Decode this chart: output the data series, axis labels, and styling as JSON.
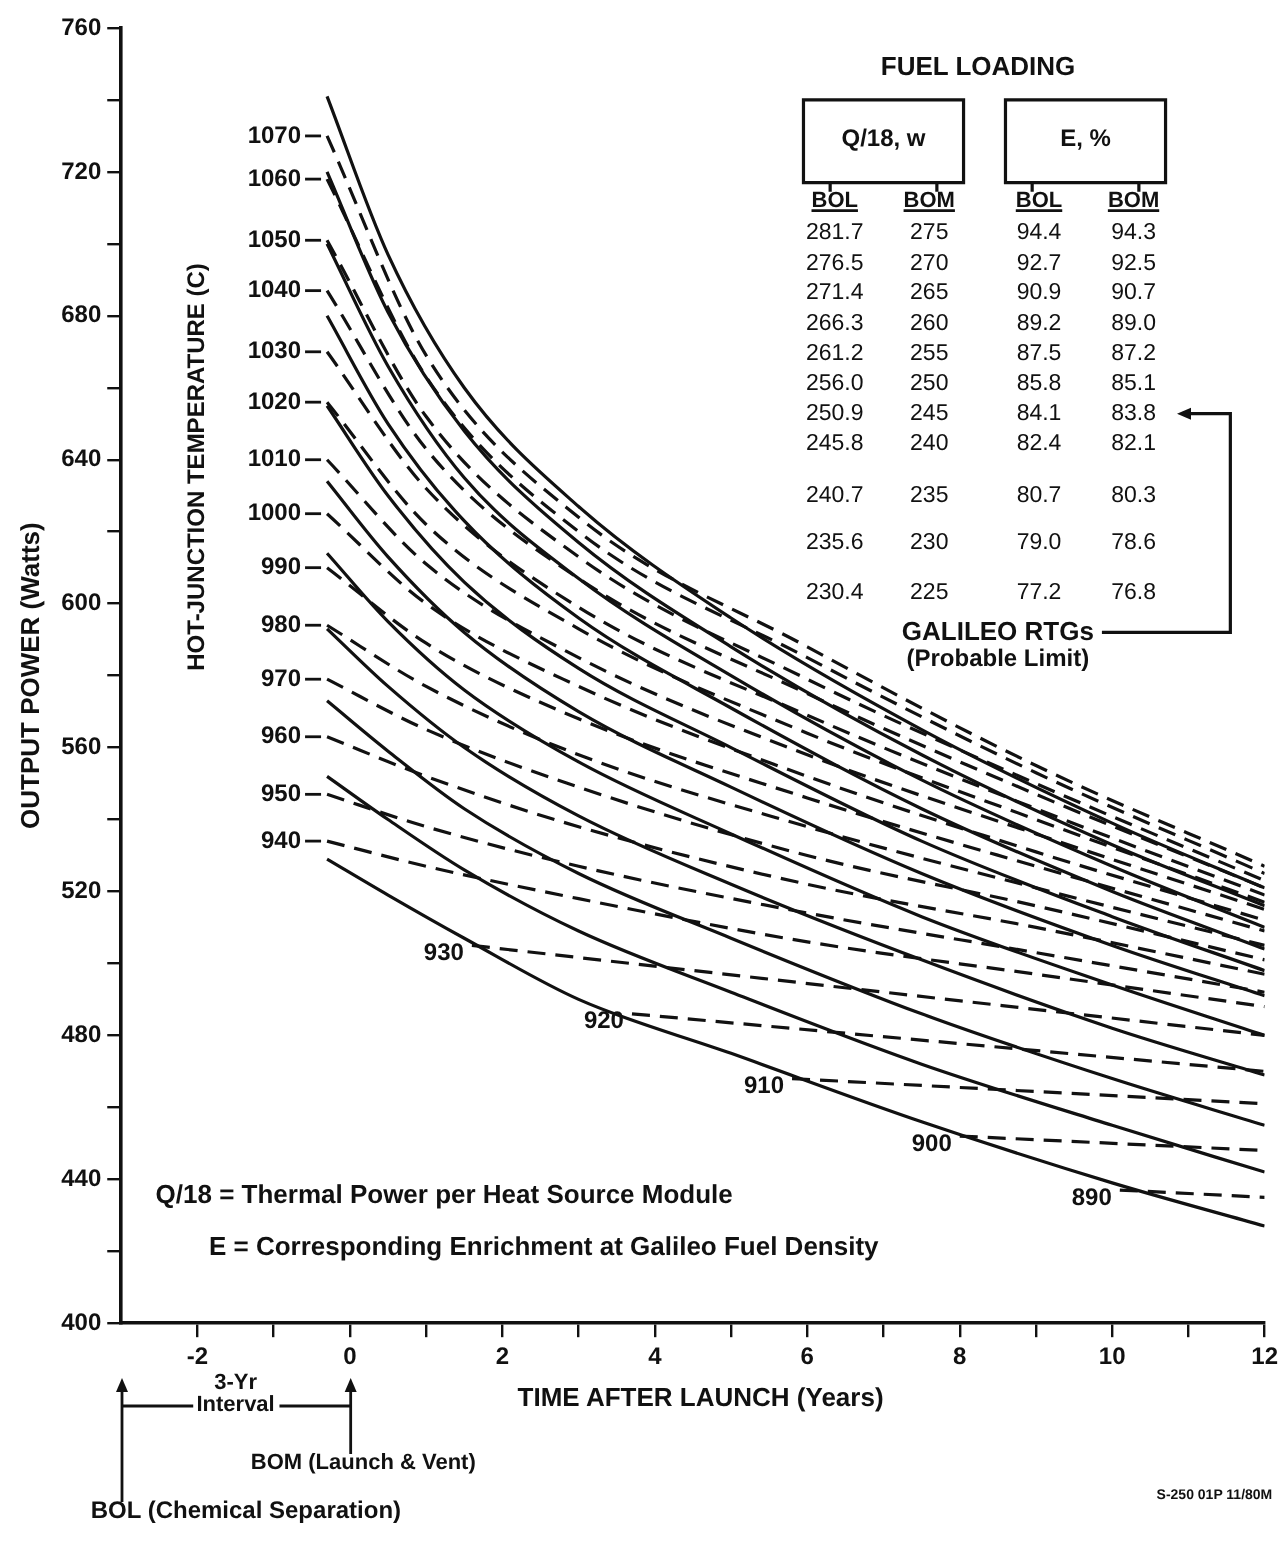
{
  "chart_data": {
    "type": "line",
    "xlabel": "TIME AFTER LAUNCH (Years)",
    "ylabel": "OUTPUT POWER (Watts)",
    "xlim": [
      -3,
      12
    ],
    "xticks": [
      -2,
      {
        "value": -1,
        "label": null
      },
      0,
      {
        "value": 1,
        "label": null
      },
      2,
      {
        "value": 3,
        "label": null
      },
      4,
      {
        "value": 5,
        "label": null
      },
      6,
      {
        "value": 7,
        "label": null
      },
      8,
      {
        "value": 9,
        "label": null
      },
      10,
      {
        "value": 11,
        "label": null
      },
      12
    ],
    "ylim": [
      400,
      760
    ],
    "yticks": [
      400,
      {
        "value": 420,
        "label": null
      },
      440,
      {
        "value": 460,
        "label": null
      },
      480,
      {
        "value": 500,
        "label": null
      },
      520,
      {
        "value": 540,
        "label": null
      },
      560,
      {
        "value": 580,
        "label": null
      },
      600,
      {
        "value": 620,
        "label": null
      },
      640,
      {
        "value": 660,
        "label": null
      },
      680,
      {
        "value": 700,
        "label": null
      },
      720,
      {
        "value": 740,
        "label": null
      },
      760
    ],
    "grid": false,
    "legend": false,
    "marker": "none",
    "series": [
      {
        "color": "#111111",
        "line_style": "solid",
        "x": [
          -0.3,
          0.5,
          1.5,
          3,
          5,
          7.5,
          10,
          12
        ],
        "values": [
          741,
          697,
          660,
          627,
          596,
          565,
          539,
          521
        ]
      },
      {
        "color": "#111111",
        "line_style": "solid",
        "x": [
          -0.3,
          0.5,
          1.5,
          3,
          5,
          7.5,
          10,
          12
        ],
        "values": [
          720,
          681,
          648,
          617,
          588,
          558,
          533,
          516
        ]
      },
      {
        "color": "#111111",
        "line_style": "solid",
        "x": [
          -0.3,
          0.5,
          1.5,
          3,
          5,
          7.5,
          10,
          12
        ],
        "values": [
          700,
          666,
          635,
          607,
          580,
          551,
          527,
          510
        ]
      },
      {
        "color": "#111111",
        "line_style": "solid",
        "x": [
          -0.3,
          0.5,
          1.5,
          3,
          5,
          7.5,
          10,
          12
        ],
        "values": [
          680,
          650,
          623,
          596,
          571,
          543,
          520,
          504
        ]
      },
      {
        "color": "#111111",
        "line_style": "solid",
        "x": [
          -0.3,
          0.5,
          1.5,
          3,
          5,
          7.5,
          10,
          12
        ],
        "values": [
          655,
          630,
          606,
          582,
          560,
          534,
          513,
          498
        ]
      },
      {
        "color": "#111111",
        "line_style": "solid",
        "x": [
          -0.3,
          0.5,
          1.5,
          3,
          5,
          7.5,
          10,
          12
        ],
        "values": [
          634,
          613,
          592,
          570,
          549,
          525,
          505,
          491
        ]
      },
      {
        "color": "#111111",
        "line_style": "solid",
        "x": [
          -0.3,
          0.5,
          1.5,
          3,
          5,
          7.5,
          10,
          12
        ],
        "values": [
          614,
          595,
          576,
          556,
          536,
          513,
          494,
          480
        ]
      },
      {
        "color": "#111111",
        "line_style": "solid",
        "x": [
          -0.3,
          0.5,
          1.5,
          3,
          5,
          7.5,
          10,
          12
        ],
        "values": [
          593,
          577,
          560,
          541,
          522,
          501,
          482,
          469
        ]
      },
      {
        "color": "#111111",
        "line_style": "solid",
        "x": [
          -0.3,
          0.5,
          1.5,
          3,
          5,
          7.5,
          10,
          12
        ],
        "values": [
          573,
          559,
          543,
          525,
          507,
          486,
          468,
          455
        ]
      },
      {
        "color": "#111111",
        "line_style": "solid",
        "x": [
          -0.3,
          0.5,
          1.5,
          3,
          5,
          7.5,
          10,
          12
        ],
        "values": [
          552,
          540,
          526,
          509,
          492,
          472,
          455,
          442
        ]
      },
      {
        "color": "#111111",
        "line_style": "solid",
        "x": [
          -0.3,
          0.5,
          1.5,
          3,
          5,
          7.5,
          10,
          12
        ],
        "values": [
          529,
          519,
          507,
          490,
          475,
          456,
          439,
          427
        ]
      },
      {
        "color": "#111111",
        "line_style": "dashed",
        "x": [
          -0.3,
          1,
          3,
          6,
          9,
          12
        ],
        "values": [
          730,
          669,
          624,
          588,
          555,
          527
        ]
      },
      {
        "color": "#111111",
        "line_style": "dashed",
        "x": [
          -0.3,
          1,
          3,
          6,
          9,
          12
        ],
        "values": [
          718,
          663,
          620,
          585,
          553,
          525
        ]
      },
      {
        "color": "#111111",
        "line_style": "dashed",
        "x": [
          -0.3,
          1,
          3,
          6,
          9,
          12
        ],
        "values": [
          701,
          652,
          613,
          579,
          550,
          523
        ]
      },
      {
        "color": "#111111",
        "line_style": "dashed",
        "x": [
          -0.3,
          1,
          3,
          6,
          9,
          12
        ],
        "values": [
          687,
          643,
          607,
          575,
          547,
          521
        ]
      },
      {
        "color": "#111111",
        "line_style": "dashed",
        "x": [
          -0.3,
          1,
          3,
          6,
          9,
          12
        ],
        "values": [
          670,
          632,
          599,
          569,
          543,
          519
        ]
      },
      {
        "color": "#111111",
        "line_style": "dashed",
        "x": [
          -0.3,
          1,
          3,
          6,
          9,
          12
        ],
        "values": [
          656,
          622,
          593,
          564,
          540,
          517
        ]
      },
      {
        "color": "#111111",
        "line_style": "dashed",
        "x": [
          -0.3,
          1,
          3,
          6,
          9,
          12
        ],
        "values": [
          640,
          611,
          585,
          558,
          536,
          515
        ]
      },
      {
        "color": "#111111",
        "line_style": "dashed",
        "x": [
          -0.3,
          1,
          3,
          6,
          9,
          12
        ],
        "values": [
          625,
          600,
          577,
          552,
          531,
          512
        ]
      },
      {
        "color": "#111111",
        "line_style": "dashed",
        "x": [
          -0.3,
          1,
          3,
          6,
          9,
          12
        ],
        "values": [
          610,
          589,
          568,
          546,
          527,
          509
        ]
      },
      {
        "color": "#111111",
        "line_style": "dashed",
        "x": [
          -0.3,
          1,
          3,
          6,
          9,
          12
        ],
        "values": [
          594,
          577,
          558,
          538,
          521,
          505
        ]
      },
      {
        "color": "#111111",
        "line_style": "dashed",
        "x": [
          -0.3,
          1,
          3,
          6,
          9,
          12
        ],
        "values": [
          579,
          565,
          549,
          530,
          516,
          501
        ]
      },
      {
        "color": "#111111",
        "line_style": "dashed",
        "x": [
          -0.3,
          1,
          3,
          6,
          9,
          12
        ],
        "values": [
          563,
          552,
          538,
          522,
          510,
          497
        ]
      },
      {
        "color": "#111111",
        "line_style": "dashed",
        "x": [
          -0.3,
          1,
          3,
          6,
          9,
          12
        ],
        "values": [
          547,
          538,
          527,
          514,
          503,
          492
        ]
      },
      {
        "color": "#111111",
        "line_style": "dashed",
        "x": [
          -0.3,
          1,
          3,
          6,
          9,
          12
        ],
        "values": [
          534,
          527,
          518,
          506,
          497,
          488
        ]
      },
      {
        "color": "#111111",
        "line_style": "dashed",
        "x": [
          1.6,
          12
        ],
        "values": [
          505,
          480
        ]
      },
      {
        "color": "#111111",
        "line_style": "dashed",
        "x": [
          3.7,
          12
        ],
        "values": [
          486,
          470
        ]
      },
      {
        "color": "#111111",
        "line_style": "dashed",
        "x": [
          5.8,
          12
        ],
        "values": [
          468,
          461
        ]
      },
      {
        "color": "#111111",
        "line_style": "dashed",
        "x": [
          8.0,
          12
        ],
        "values": [
          452,
          448
        ]
      },
      {
        "color": "#111111",
        "line_style": "dashed",
        "x": [
          10.1,
          12
        ],
        "values": [
          437,
          435
        ]
      }
    ],
    "annotations": [
      "FUEL LOADING",
      "Q/18, w",
      "E, %",
      "BOL",
      "BOM",
      "BOL",
      "BOM",
      "281.7",
      "275",
      "94.4",
      "94.3",
      "276.5",
      "270",
      "92.7",
      "92.5",
      "271.4",
      "265",
      "90.9",
      "90.7",
      "266.3",
      "260",
      "89.2",
      "89.0",
      "261.2",
      "255",
      "87.5",
      "87.2",
      "256.0",
      "250",
      "85.8",
      "85.1",
      "250.9",
      "245",
      "84.1",
      "83.8",
      "245.8",
      "240",
      "82.4",
      "82.1",
      "240.7",
      "235",
      "80.7",
      "80.3",
      "235.6",
      "230",
      "79.0",
      "78.6",
      "230.4",
      "225",
      "77.2",
      "76.8",
      "GALILEO RTGs",
      "(Probable Limit)",
      "Q/18 = Thermal Power per Heat Source Module",
      "E = Corresponding Enrichment at Galileo Fuel Density",
      "HOT-JUNCTION TEMPERATURE (C)",
      "3-Yr",
      "Interval",
      "BOM (Launch & Vent)",
      "BOL (Chemical Separation)",
      "S-250 01P 11/80M",
      {
        "text": "1070",
        "x": -0.3,
        "y": 730
      },
      {
        "text": "1060",
        "x": -0.3,
        "y": 718
      },
      {
        "text": "1050",
        "x": -0.3,
        "y": 701
      },
      {
        "text": "1040",
        "x": -0.3,
        "y": 687
      },
      {
        "text": "1030",
        "x": -0.3,
        "y": 670
      },
      {
        "text": "1020",
        "x": -0.3,
        "y": 656
      },
      {
        "text": "1010",
        "x": -0.3,
        "y": 640
      },
      {
        "text": "1000",
        "x": -0.3,
        "y": 625
      },
      {
        "text": "990",
        "x": -0.3,
        "y": 610
      },
      {
        "text": "980",
        "x": -0.3,
        "y": 594
      },
      {
        "text": "970",
        "x": -0.3,
        "y": 579
      },
      {
        "text": "960",
        "x": -0.3,
        "y": 563
      },
      {
        "text": "950",
        "x": -0.3,
        "y": 547
      },
      {
        "text": "940",
        "x": -0.3,
        "y": 534
      },
      {
        "text": "930",
        "x": 1.6,
        "y": 505
      },
      {
        "text": "920",
        "x": 3.7,
        "y": 486
      },
      {
        "text": "910",
        "x": 5.8,
        "y": 468
      },
      {
        "text": "900",
        "x": 8.0,
        "y": 452
      },
      {
        "text": "890",
        "x": 10.1,
        "y": 437
      }
    ]
  }
}
